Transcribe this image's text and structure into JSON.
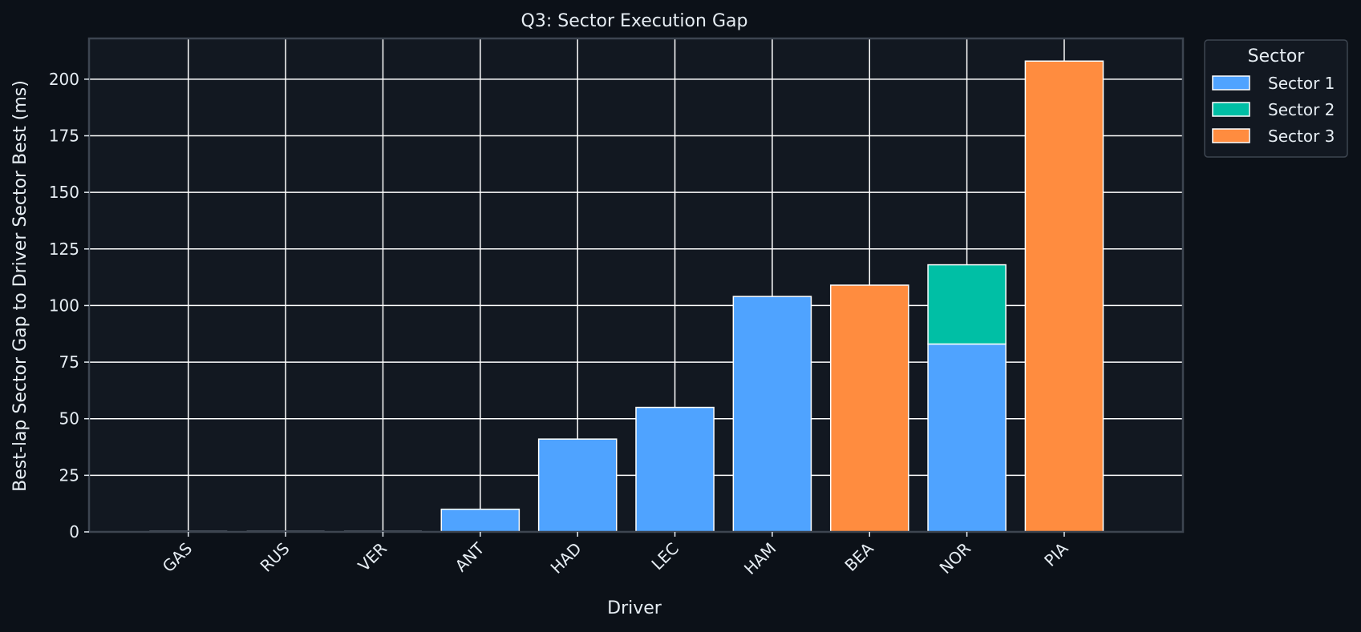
{
  "colors": {
    "figure_bg": "#0c1118",
    "axes_bg": "#121821",
    "spine": "#3d4550",
    "grid": "#ffffff",
    "text": "#e6edf3",
    "bar_edge": "#ffffff"
  },
  "chart_data": {
    "type": "bar",
    "stacked": true,
    "title": "Q3: Sector Execution Gap",
    "xlabel": "Driver",
    "ylabel": "Best-lap Sector Gap to Driver Sector Best (ms)",
    "categories": [
      "GAS",
      "RUS",
      "VER",
      "ANT",
      "HAD",
      "LEC",
      "HAM",
      "BEA",
      "NOR",
      "PIA"
    ],
    "ylim": [
      0,
      218
    ],
    "yticks": [
      0,
      25,
      50,
      75,
      100,
      125,
      150,
      175,
      200
    ],
    "grid": true,
    "legend": {
      "title": "Sector",
      "placement": "outside-top-right"
    },
    "series": [
      {
        "name": "Sector 1",
        "color": "#4fa3ff",
        "values": [
          0,
          0,
          0,
          10,
          41,
          55,
          104,
          0,
          83,
          0
        ]
      },
      {
        "name": "Sector 2",
        "color": "#00bfa5",
        "values": [
          0,
          0,
          0,
          0,
          0,
          0,
          0,
          0,
          35,
          0
        ]
      },
      {
        "name": "Sector 3",
        "color": "#ff8c3f",
        "values": [
          0,
          0,
          0,
          0,
          0,
          0,
          0,
          109,
          0,
          208
        ]
      }
    ]
  }
}
